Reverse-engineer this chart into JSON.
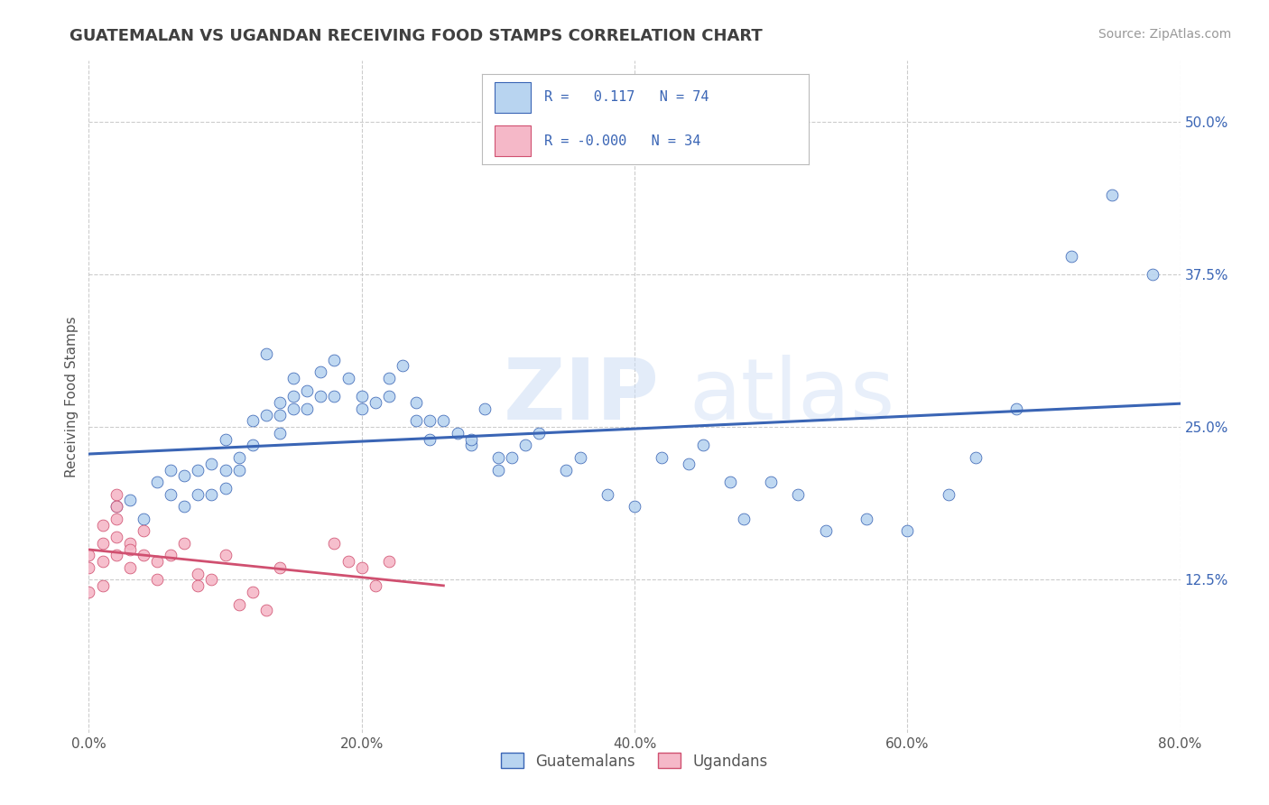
{
  "title": "GUATEMALAN VS UGANDAN RECEIVING FOOD STAMPS CORRELATION CHART",
  "source": "Source: ZipAtlas.com",
  "ylabel": "Receiving Food Stamps",
  "xlim": [
    0.0,
    0.8
  ],
  "ylim": [
    0.0,
    0.55
  ],
  "xticks": [
    0.0,
    0.2,
    0.4,
    0.6,
    0.8
  ],
  "xtick_labels": [
    "0.0%",
    "20.0%",
    "40.0%",
    "60.0%",
    "80.0%"
  ],
  "yticks": [
    0.125,
    0.25,
    0.375,
    0.5
  ],
  "ytick_labels": [
    "12.5%",
    "25.0%",
    "37.5%",
    "50.0%"
  ],
  "grid_color": "#cccccc",
  "background_color": "#ffffff",
  "title_color": "#404040",
  "legend_R_blue": "0.117",
  "legend_N_blue": "74",
  "legend_R_pink": "-0.000",
  "legend_N_pink": "34",
  "blue_scatter_color": "#b8d4f0",
  "pink_scatter_color": "#f5b8c8",
  "blue_line_color": "#3a65b5",
  "pink_line_color": "#d05070",
  "watermark_zip": "ZIP",
  "watermark_atlas": "atlas",
  "legend_label_blue": "Guatemalans",
  "legend_label_pink": "Ugandans",
  "blue_scatter_x": [
    0.02,
    0.03,
    0.04,
    0.05,
    0.06,
    0.06,
    0.07,
    0.07,
    0.08,
    0.08,
    0.09,
    0.09,
    0.1,
    0.1,
    0.1,
    0.11,
    0.11,
    0.12,
    0.12,
    0.13,
    0.13,
    0.14,
    0.14,
    0.14,
    0.15,
    0.15,
    0.15,
    0.16,
    0.16,
    0.17,
    0.17,
    0.18,
    0.18,
    0.19,
    0.2,
    0.2,
    0.21,
    0.22,
    0.22,
    0.23,
    0.24,
    0.24,
    0.25,
    0.25,
    0.26,
    0.27,
    0.28,
    0.28,
    0.29,
    0.3,
    0.3,
    0.31,
    0.32,
    0.33,
    0.35,
    0.36,
    0.38,
    0.4,
    0.42,
    0.44,
    0.45,
    0.47,
    0.48,
    0.5,
    0.52,
    0.54,
    0.57,
    0.6,
    0.63,
    0.65,
    0.68,
    0.72,
    0.75,
    0.78
  ],
  "blue_scatter_y": [
    0.185,
    0.19,
    0.175,
    0.205,
    0.215,
    0.195,
    0.21,
    0.185,
    0.215,
    0.195,
    0.22,
    0.195,
    0.24,
    0.215,
    0.2,
    0.225,
    0.215,
    0.255,
    0.235,
    0.31,
    0.26,
    0.27,
    0.26,
    0.245,
    0.29,
    0.275,
    0.265,
    0.28,
    0.265,
    0.295,
    0.275,
    0.305,
    0.275,
    0.29,
    0.275,
    0.265,
    0.27,
    0.29,
    0.275,
    0.3,
    0.255,
    0.27,
    0.255,
    0.24,
    0.255,
    0.245,
    0.235,
    0.24,
    0.265,
    0.225,
    0.215,
    0.225,
    0.235,
    0.245,
    0.215,
    0.225,
    0.195,
    0.185,
    0.225,
    0.22,
    0.235,
    0.205,
    0.175,
    0.205,
    0.195,
    0.165,
    0.175,
    0.165,
    0.195,
    0.225,
    0.265,
    0.39,
    0.44,
    0.375
  ],
  "pink_scatter_x": [
    0.0,
    0.0,
    0.0,
    0.01,
    0.01,
    0.01,
    0.01,
    0.02,
    0.02,
    0.02,
    0.02,
    0.02,
    0.03,
    0.03,
    0.03,
    0.04,
    0.04,
    0.05,
    0.05,
    0.06,
    0.07,
    0.08,
    0.08,
    0.09,
    0.1,
    0.11,
    0.12,
    0.13,
    0.14,
    0.18,
    0.19,
    0.2,
    0.21,
    0.22
  ],
  "pink_scatter_y": [
    0.145,
    0.135,
    0.115,
    0.17,
    0.155,
    0.14,
    0.12,
    0.195,
    0.185,
    0.175,
    0.16,
    0.145,
    0.155,
    0.15,
    0.135,
    0.165,
    0.145,
    0.14,
    0.125,
    0.145,
    0.155,
    0.13,
    0.12,
    0.125,
    0.145,
    0.105,
    0.115,
    0.1,
    0.135,
    0.155,
    0.14,
    0.135,
    0.12,
    0.14
  ]
}
